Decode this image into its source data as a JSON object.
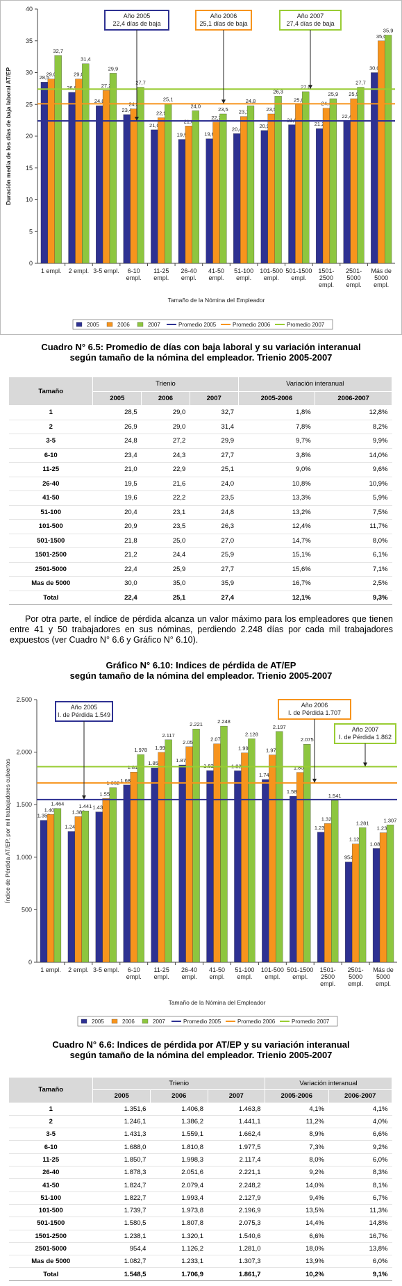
{
  "chart_data": [
    {
      "type": "bar",
      "ylabel": "Duración media de los días de baja laboral AT/EP",
      "xlabel": "Tamaño de la Nómina del Empleador",
      "categories": [
        "1 empl.",
        "2 empl.",
        "3-5 empl.",
        "6-10 empl.",
        "11-25 empl.",
        "26-40 empl.",
        "41-50 empl.",
        "51-100 empl.",
        "101-500 empl.",
        "501-1500 empl.",
        "1501-2500 empl.",
        "2501-5000 empl.",
        "Más de 5000 empl."
      ],
      "series": [
        {
          "name": "2005",
          "color": "#2e3192",
          "values": [
            28.5,
            26.9,
            24.8,
            23.4,
            21.0,
            19.5,
            19.6,
            20.4,
            20.9,
            21.8,
            21.2,
            22.4,
            30.0
          ],
          "value_labels": [
            "28,5",
            "26,9",
            "24,8",
            "23,4",
            "21,0",
            "19,5",
            "19,6",
            "20,4",
            "20,9",
            "21,8",
            "21,2",
            "22,4",
            "30,0"
          ]
        },
        {
          "name": "2006",
          "color": "#f7941d",
          "values": [
            29.0,
            29.0,
            27.2,
            24.3,
            22.9,
            21.6,
            22.2,
            23.1,
            23.5,
            25.0,
            24.4,
            25.9,
            35.0
          ],
          "value_labels": [
            "29,0",
            "29,0",
            "27,2",
            "24,3",
            "22,9",
            "21,6",
            "22,2",
            "23,1",
            "23,5",
            "25,0",
            "24,4",
            "25,9",
            "35,0"
          ]
        },
        {
          "name": "2007",
          "color": "#8dc63f",
          "values": [
            32.7,
            31.4,
            29.9,
            27.7,
            25.1,
            24.0,
            23.5,
            24.8,
            26.3,
            27.0,
            25.9,
            27.7,
            35.9
          ],
          "value_labels": [
            "32,7",
            "31,4",
            "29,9",
            "27,7",
            "25,1",
            "24,0",
            "23,5",
            "24,8",
            "26,3",
            "27,0",
            "25,9",
            "27,7",
            "35,9"
          ]
        }
      ],
      "reference_lines": [
        {
          "name": "Promedio 2005",
          "color": "#2e3192",
          "value": 22.4
        },
        {
          "name": "Promedio 2006",
          "color": "#f7941d",
          "value": 25.1
        },
        {
          "name": "Promedio 2007",
          "color": "#99cc33",
          "value": 27.4
        }
      ],
      "annotations": [
        {
          "lines": [
            "Año 2005",
            "22,4 días de baja"
          ],
          "color": "#2e3192"
        },
        {
          "lines": [
            "Año 2006",
            "25,1 días de baja"
          ],
          "color": "#f7941d"
        },
        {
          "lines": [
            "Año 2007",
            "27,4 días de baja"
          ],
          "color": "#99cc33"
        }
      ],
      "ylim": [
        0,
        40
      ],
      "yticks": [
        0,
        5,
        10,
        15,
        20,
        25,
        30,
        35,
        40
      ]
    },
    {
      "type": "bar",
      "ylabel": "Índice de Pérdida AT/EP, por mil trabajadores cubiertos",
      "xlabel": "Tamaño de la Nómina del Empleador",
      "categories": [
        "1 empl.",
        "2 empl.",
        "3-5 empl.",
        "6-10 empl.",
        "11-25 empl.",
        "26-40 empl.",
        "41-50 empl.",
        "51-100 empl.",
        "101-500 empl.",
        "501-1500 empl.",
        "1501-2500 empl.",
        "2501-5000 empl.",
        "Más de 5000 empl."
      ],
      "series": [
        {
          "name": "2005",
          "color": "#2e3192",
          "values": [
            1351.6,
            1246.1,
            1431.3,
            1688.0,
            1850.7,
            1878.3,
            1824.7,
            1822.7,
            1739.7,
            1580.5,
            1238.1,
            954.4,
            1082.7
          ],
          "value_labels": [
            "1.352",
            "1.246",
            "1.431",
            "1.688",
            "1.851",
            "1.878",
            "1.825",
            "1.823",
            "1.740",
            "1.581",
            "1.238",
            "954",
            "1.083"
          ]
        },
        {
          "name": "2006",
          "color": "#f7941d",
          "values": [
            1406.8,
            1386.2,
            1559.1,
            1810.8,
            1998.3,
            2051.6,
            2079.4,
            1993.4,
            1973.8,
            1807.8,
            1320.1,
            1126.2,
            1233.1
          ],
          "value_labels": [
            "1.407",
            "1.386",
            "1.559",
            "1.811",
            "1.998",
            "2.052",
            "2.079",
            "1.993",
            "1.974",
            "1.808",
            "1.320",
            "1.126",
            "1.233"
          ]
        },
        {
          "name": "2007",
          "color": "#8dc63f",
          "values": [
            1463.8,
            1441.1,
            1662.4,
            1977.5,
            2117.4,
            2221.1,
            2248.2,
            2127.9,
            2196.9,
            2075.3,
            1540.6,
            1281.0,
            1307.3
          ],
          "value_labels": [
            "1.464",
            "1.441",
            "1.662",
            "1.978",
            "2.117",
            "2.221",
            "2.248",
            "2.128",
            "2.197",
            "2.075",
            "1.541",
            "1.281",
            "1.307"
          ]
        }
      ],
      "reference_lines": [
        {
          "name": "Promedio 2005",
          "color": "#2e3192",
          "value": 1548.5
        },
        {
          "name": "Promedio 2006",
          "color": "#f7941d",
          "value": 1706.9
        },
        {
          "name": "Promedio 2007",
          "color": "#99cc33",
          "value": 1861.7
        }
      ],
      "annotations": [
        {
          "lines": [
            "Año 2005",
            "I. de Pérdida 1.549"
          ],
          "color": "#2e3192"
        },
        {
          "lines": [
            "Año 2006",
            "I. de Pérdida 1.707"
          ],
          "color": "#f7941d"
        },
        {
          "lines": [
            "Año 2007",
            "I. de Pérdida 1.862"
          ],
          "color": "#99cc33"
        }
      ],
      "ylim": [
        0,
        2500
      ],
      "yticks": [
        0,
        500,
        {
          "value": 1000,
          "label": "1.000"
        },
        {
          "value": 1500,
          "label": "1.500"
        },
        {
          "value": 2000,
          "label": "2.000"
        },
        {
          "value": 2500,
          "label": "2.500"
        }
      ]
    }
  ],
  "captions": [
    [
      "Cuadro N° 6.5: Promedio de días con baja laboral y su variación interanual",
      "según tamaño de la nómina del empleador. Trienio 2005-2007"
    ],
    [
      "Gráfico N° 6.10: Indices de pérdida de AT/EP",
      "según tamaño de la nómina del empleador. Trienio 2005-2007"
    ],
    [
      "Cuadro N° 6.6: Indices de pérdida por AT/EP y su variación interanual",
      "según tamaño de la nómina del empleador. Trienio 2005-2007"
    ]
  ],
  "paragraph": "Por otra parte, el índice de pérdida alcanza un valor máximo para los empleadores que tienen entre 41 y 50 trabajadores en sus nóminas, perdiendo 2.248 días por cada mil trabajadores expuestos (ver Cuadro N° 6.6 y Gráfico N° 6.10).",
  "tables": [
    {
      "header": [
        "Tamaño",
        "Trienio",
        "Variación interanual"
      ],
      "subheader": [
        "2005",
        "2006",
        "2007",
        "2005-2006",
        "2006-2007"
      ],
      "rows": [
        [
          "1",
          "28,5",
          "29,0",
          "32,7",
          "1,8%",
          "12,8%"
        ],
        [
          "2",
          "26,9",
          "29,0",
          "31,4",
          "7,8%",
          "8,2%"
        ],
        [
          "3-5",
          "24,8",
          "27,2",
          "29,9",
          "9,7%",
          "9,9%"
        ],
        [
          "6-10",
          "23,4",
          "24,3",
          "27,7",
          "3,8%",
          "14,0%"
        ],
        [
          "11-25",
          "21,0",
          "22,9",
          "25,1",
          "9,0%",
          "9,6%"
        ],
        [
          "26-40",
          "19,5",
          "21,6",
          "24,0",
          "10,8%",
          "10,9%"
        ],
        [
          "41-50",
          "19,6",
          "22,2",
          "23,5",
          "13,3%",
          "5,9%"
        ],
        [
          "51-100",
          "20,4",
          "23,1",
          "24,8",
          "13,2%",
          "7,5%"
        ],
        [
          "101-500",
          "20,9",
          "23,5",
          "26,3",
          "12,4%",
          "11,7%"
        ],
        [
          "501-1500",
          "21,8",
          "25,0",
          "27,0",
          "14,7%",
          "8,0%"
        ],
        [
          "1501-2500",
          "21,2",
          "24,4",
          "25,9",
          "15,1%",
          "6,1%"
        ],
        [
          "2501-5000",
          "22,4",
          "25,9",
          "27,7",
          "15,6%",
          "7,1%"
        ],
        [
          "Mas de 5000",
          "30,0",
          "35,0",
          "35,9",
          "16,7%",
          "2,5%"
        ],
        [
          "Total",
          "22,4",
          "25,1",
          "27,4",
          "12,1%",
          "9,3%"
        ]
      ]
    },
    {
      "header": [
        "Tamaño",
        "Trienio",
        "Variación interanual"
      ],
      "subheader": [
        "2005",
        "2006",
        "2007",
        "2005-2006",
        "2006-2007"
      ],
      "rows": [
        [
          "1",
          "1.351,6",
          "1.406,8",
          "1.463,8",
          "4,1%",
          "4,1%"
        ],
        [
          "2",
          "1.246,1",
          "1.386,2",
          "1.441,1",
          "11,2%",
          "4,0%"
        ],
        [
          "3-5",
          "1.431,3",
          "1.559,1",
          "1.662,4",
          "8,9%",
          "6,6%"
        ],
        [
          "6-10",
          "1.688,0",
          "1.810,8",
          "1.977,5",
          "7,3%",
          "9,2%"
        ],
        [
          "11-25",
          "1.850,7",
          "1.998,3",
          "2.117,4",
          "8,0%",
          "6,0%"
        ],
        [
          "26-40",
          "1.878,3",
          "2.051,6",
          "2.221,1",
          "9,2%",
          "8,3%"
        ],
        [
          "41-50",
          "1.824,7",
          "2.079,4",
          "2.248,2",
          "14,0%",
          "8,1%"
        ],
        [
          "51-100",
          "1.822,7",
          "1.993,4",
          "2.127,9",
          "9,4%",
          "6,7%"
        ],
        [
          "101-500",
          "1.739,7",
          "1.973,8",
          "2.196,9",
          "13,5%",
          "11,3%"
        ],
        [
          "501-1500",
          "1.580,5",
          "1.807,8",
          "2.075,3",
          "14,4%",
          "14,8%"
        ],
        [
          "1501-2500",
          "1.238,1",
          "1.320,1",
          "1.540,6",
          "6,6%",
          "16,7%"
        ],
        [
          "2501-5000",
          "954,4",
          "1.126,2",
          "1.281,0",
          "18,0%",
          "13,8%"
        ],
        [
          "Mas de 5000",
          "1.082,7",
          "1.233,1",
          "1.307,3",
          "13,9%",
          "6,0%"
        ],
        [
          "Total",
          "1.548,5",
          "1.706,9",
          "1.861,7",
          "10,2%",
          "9,1%"
        ]
      ]
    }
  ]
}
